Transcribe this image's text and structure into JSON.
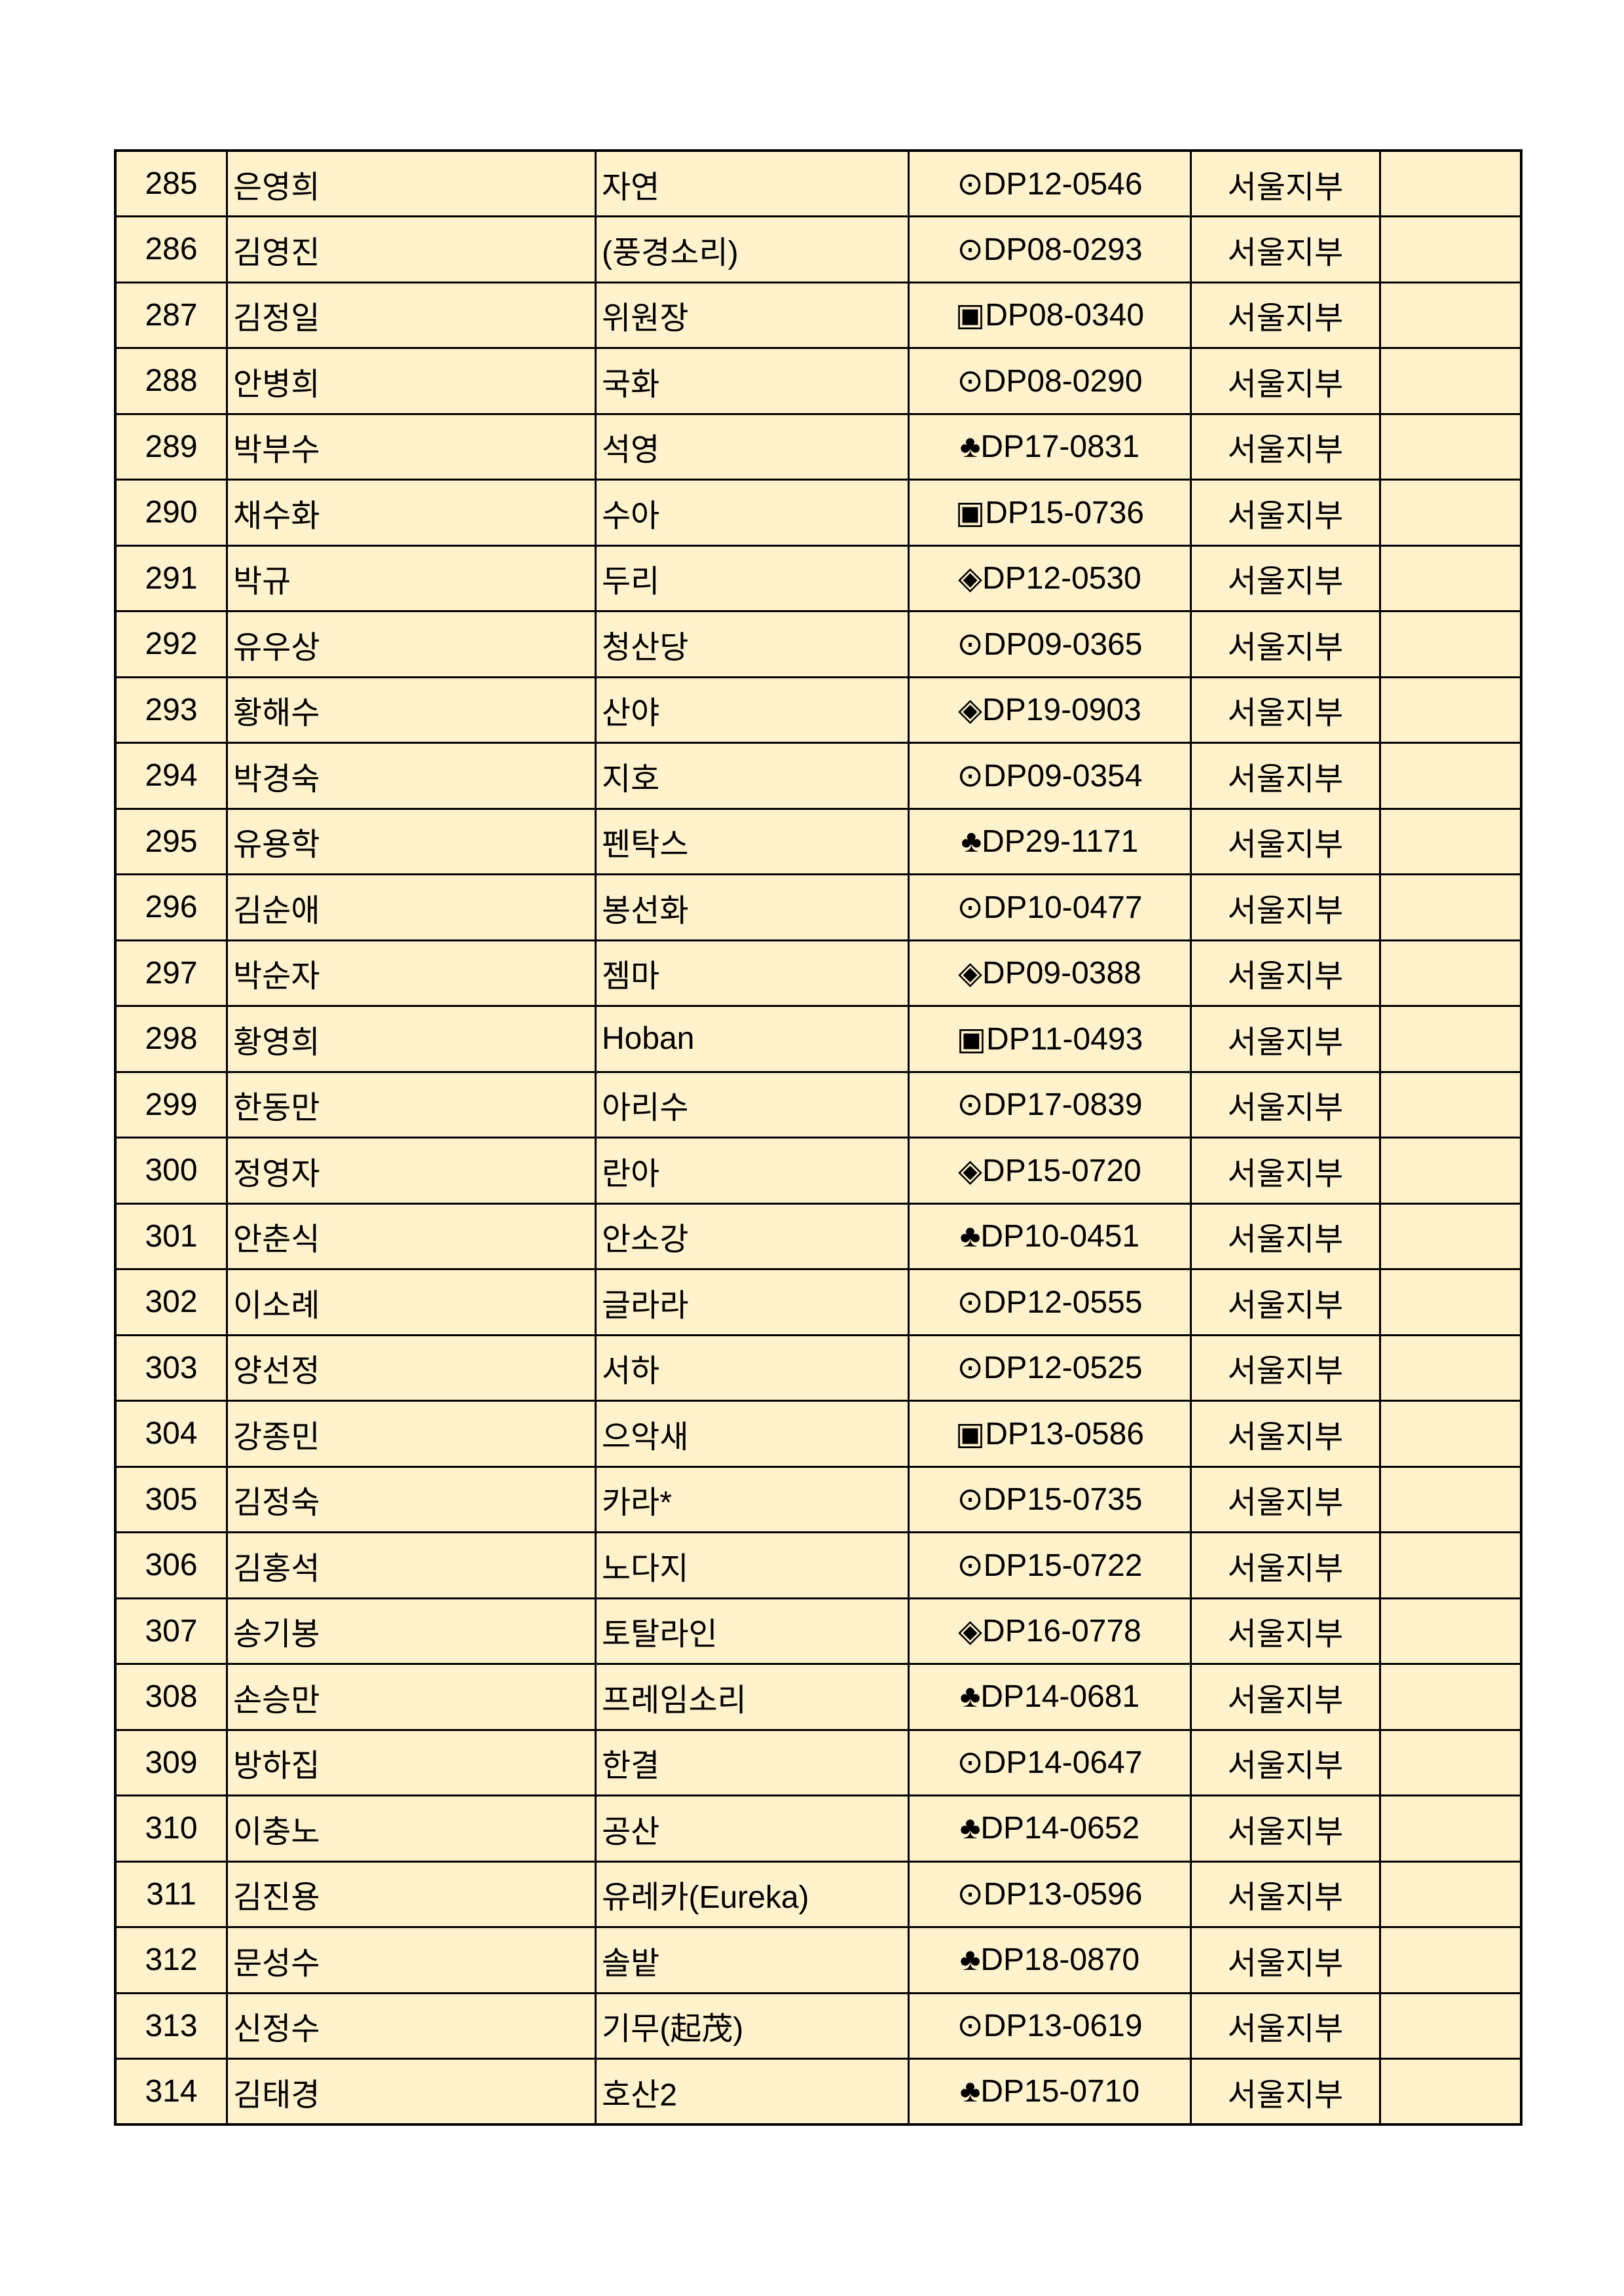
{
  "table": {
    "background": "#fff2cc",
    "rows": [
      {
        "no": "285",
        "name": "은영희",
        "title": "자연",
        "code": "⊙DP12-0546",
        "branch": "서울지부",
        "note": ""
      },
      {
        "no": "286",
        "name": "김영진",
        "title": "(풍경소리)",
        "code": "⊙DP08-0293",
        "branch": "서울지부",
        "note": ""
      },
      {
        "no": "287",
        "name": "김정일",
        "title": "위원장",
        "code": "▣DP08-0340",
        "branch": "서울지부",
        "note": ""
      },
      {
        "no": "288",
        "name": "안병희",
        "title": "국화",
        "code": "⊙DP08-0290",
        "branch": "서울지부",
        "note": ""
      },
      {
        "no": "289",
        "name": "박부수",
        "title": "석영",
        "code": "♣DP17-0831",
        "branch": "서울지부",
        "note": ""
      },
      {
        "no": "290",
        "name": "채수화",
        "title": "수아",
        "code": "▣DP15-0736",
        "branch": "서울지부",
        "note": ""
      },
      {
        "no": "291",
        "name": "박규",
        "title": "두리",
        "code": "◈DP12-0530",
        "branch": "서울지부",
        "note": ""
      },
      {
        "no": "292",
        "name": "유우상",
        "title": "청산당",
        "code": "⊙DP09-0365",
        "branch": "서울지부",
        "note": ""
      },
      {
        "no": "293",
        "name": "황해수",
        "title": "산야",
        "code": "◈DP19-0903",
        "branch": "서울지부",
        "note": ""
      },
      {
        "no": "294",
        "name": "박경숙",
        "title": "지호",
        "code": "⊙DP09-0354",
        "branch": "서울지부",
        "note": ""
      },
      {
        "no": "295",
        "name": "유용학",
        "title": "펜탁스",
        "code": "♣DP29-1171",
        "branch": "서울지부",
        "note": ""
      },
      {
        "no": "296",
        "name": "김순애",
        "title": "봉선화",
        "code": "⊙DP10-0477",
        "branch": "서울지부",
        "note": ""
      },
      {
        "no": "297",
        "name": "박순자",
        "title": "젬마",
        "code": "◈DP09-0388",
        "branch": "서울지부",
        "note": ""
      },
      {
        "no": "298",
        "name": "황영희",
        "title": "Hoban",
        "code": "▣DP11-0493",
        "branch": "서울지부",
        "note": ""
      },
      {
        "no": "299",
        "name": "한동만",
        "title": "아리수",
        "code": "⊙DP17-0839",
        "branch": "서울지부",
        "note": ""
      },
      {
        "no": "300",
        "name": "정영자",
        "title": "란아",
        "code": "◈DP15-0720",
        "branch": "서울지부",
        "note": ""
      },
      {
        "no": "301",
        "name": "안춘식",
        "title": "안소강",
        "code": "♣DP10-0451",
        "branch": "서울지부",
        "note": ""
      },
      {
        "no": "302",
        "name": "이소례",
        "title": "글라라",
        "code": "⊙DP12-0555",
        "branch": "서울지부",
        "note": ""
      },
      {
        "no": "303",
        "name": "양선정",
        "title": "서하",
        "code": "⊙DP12-0525",
        "branch": "서울지부",
        "note": ""
      },
      {
        "no": "304",
        "name": "강종민",
        "title": "으악새",
        "code": "▣DP13-0586",
        "branch": "서울지부",
        "note": ""
      },
      {
        "no": "305",
        "name": "김정숙",
        "title": "카라*",
        "code": "⊙DP15-0735",
        "branch": "서울지부",
        "note": ""
      },
      {
        "no": "306",
        "name": "김홍석",
        "title": "노다지",
        "code": "⊙DP15-0722",
        "branch": "서울지부",
        "note": ""
      },
      {
        "no": "307",
        "name": "송기봉",
        "title": "토탈라인",
        "code": "◈DP16-0778",
        "branch": "서울지부",
        "note": ""
      },
      {
        "no": "308",
        "name": "손승만",
        "title": "프레임소리",
        "code": "♣DP14-0681",
        "branch": "서울지부",
        "note": ""
      },
      {
        "no": "309",
        "name": "방하집",
        "title": "한결",
        "code": "⊙DP14-0647",
        "branch": "서울지부",
        "note": ""
      },
      {
        "no": "310",
        "name": "이충노",
        "title": "공산",
        "code": "♣DP14-0652",
        "branch": "서울지부",
        "note": ""
      },
      {
        "no": "311",
        "name": "김진용",
        "title": "유레카(Eureka)",
        "code": "⊙DP13-0596",
        "branch": "서울지부",
        "note": ""
      },
      {
        "no": "312",
        "name": "문성수",
        "title": "솔밭",
        "code": "♣DP18-0870",
        "branch": "서울지부",
        "note": ""
      },
      {
        "no": "313",
        "name": "신정수",
        "title": "기무(起茂)",
        "code": "⊙DP13-0619",
        "branch": "서울지부",
        "note": ""
      },
      {
        "no": "314",
        "name": "김태경",
        "title": "호산2",
        "code": "♣DP15-0710",
        "branch": "서울지부",
        "note": ""
      }
    ]
  }
}
